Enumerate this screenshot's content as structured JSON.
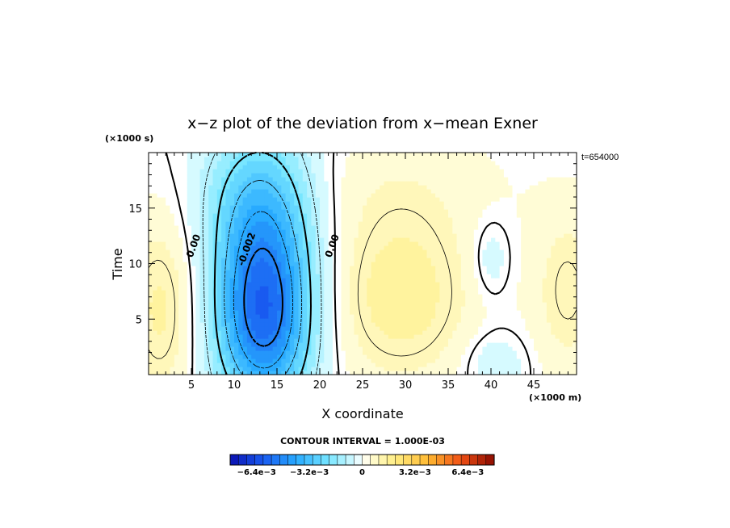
{
  "chart_data": {
    "type": "heatmap",
    "title": "x−z plot of the deviation from x−mean Exner",
    "xlabel": "X coordinate",
    "ylabel": "Time",
    "x_unit": "(×1000 m)",
    "y_unit": "(×1000 s)",
    "annotation": "t=654000",
    "xlim": [
      0,
      50
    ],
    "ylim": [
      0,
      20
    ],
    "x_ticks": [
      5,
      10,
      15,
      20,
      25,
      30,
      35,
      40,
      45
    ],
    "y_ticks": [
      5,
      10,
      15
    ],
    "contour_interval_text": "CONTOUR INTERVAL = 1.000E-03",
    "contour_labels": [
      {
        "text": "0.00",
        "x": 5.6,
        "y": 11.5
      },
      {
        "text": "-0.002",
        "x": 11.8,
        "y": 11.2
      },
      {
        "text": "0.00",
        "x": 21.8,
        "y": 11.5
      }
    ],
    "colorbar": {
      "min": -0.008,
      "max": 0.008,
      "steps": 32,
      "tick_labels": [
        "−6.4e−3",
        "−3.2e−3",
        "0",
        "3.2e−3",
        "6.4e−3"
      ],
      "tick_values": [
        -0.0064,
        -0.0032,
        0,
        0.0032,
        0.0064
      ]
    },
    "colors": {
      "negative_strong": "#0a10b0",
      "negative_mid": "#2ab8ff",
      "neutral": "#ffffff",
      "positive_mid": "#ffef88",
      "positive_strong": "#8a0a00"
    },
    "field_centers": [
      {
        "x": 13.5,
        "y": 5.5,
        "amplitude": -0.0056,
        "sx": 4.0,
        "sy": 6.0
      },
      {
        "x": 13.0,
        "y": 16.0,
        "amplitude": -0.0025,
        "sx": 4.5,
        "sy": 5.0
      },
      {
        "x": 29.5,
        "y": 7.0,
        "amplitude": 0.0016,
        "sx": 6.0,
        "sy": 5.5
      },
      {
        "x": 1.5,
        "y": 6.0,
        "amplitude": 0.0014,
        "sx": 3.0,
        "sy": 6.0
      },
      {
        "x": 49.0,
        "y": 7.5,
        "amplitude": 0.0011,
        "sx": 3.0,
        "sy": 5.5
      },
      {
        "x": 40.0,
        "y": 10.5,
        "amplitude": -0.0008,
        "sx": 1.5,
        "sy": 2.5
      },
      {
        "x": 40.5,
        "y": 1.0,
        "amplitude": -0.0008,
        "sx": 2.5,
        "sy": 2.0
      },
      {
        "x": 29.0,
        "y": 17.0,
        "amplitude": 0.0005,
        "sx": 10.0,
        "sy": 4.0
      }
    ]
  }
}
